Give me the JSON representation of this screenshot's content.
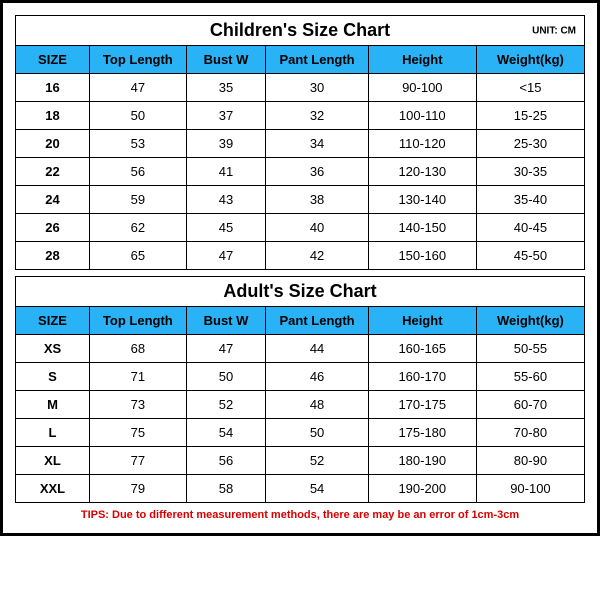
{
  "colors": {
    "header_bg": "#29b2f5",
    "border": "#000000",
    "tips_text": "#d90000",
    "background": "#ffffff"
  },
  "children_chart": {
    "title": "Children's Size Chart",
    "unit": "UNIT: CM",
    "columns": [
      "SIZE",
      "Top Length",
      "Bust W",
      "Pant Length",
      "Height",
      "Weight(kg)"
    ],
    "rows": [
      [
        "16",
        "47",
        "35",
        "30",
        "90-100",
        "<15"
      ],
      [
        "18",
        "50",
        "37",
        "32",
        "100-110",
        "15-25"
      ],
      [
        "20",
        "53",
        "39",
        "34",
        "110-120",
        "25-30"
      ],
      [
        "22",
        "56",
        "41",
        "36",
        "120-130",
        "30-35"
      ],
      [
        "24",
        "59",
        "43",
        "38",
        "130-140",
        "35-40"
      ],
      [
        "26",
        "62",
        "45",
        "40",
        "140-150",
        "40-45"
      ],
      [
        "28",
        "65",
        "47",
        "42",
        "150-160",
        "45-50"
      ]
    ]
  },
  "adult_chart": {
    "title": "Adult's Size Chart",
    "columns": [
      "SIZE",
      "Top Length",
      "Bust W",
      "Pant Length",
      "Height",
      "Weight(kg)"
    ],
    "rows": [
      [
        "XS",
        "68",
        "47",
        "44",
        "160-165",
        "50-55"
      ],
      [
        "S",
        "71",
        "50",
        "46",
        "160-170",
        "55-60"
      ],
      [
        "M",
        "73",
        "52",
        "48",
        "170-175",
        "60-70"
      ],
      [
        "L",
        "75",
        "54",
        "50",
        "175-180",
        "70-80"
      ],
      [
        "XL",
        "77",
        "56",
        "52",
        "180-190",
        "80-90"
      ],
      [
        "XXL",
        "79",
        "58",
        "54",
        "190-200",
        "90-100"
      ]
    ]
  },
  "tips": "TIPS: Due to different measurement methods, there are may be an error of 1cm-3cm"
}
